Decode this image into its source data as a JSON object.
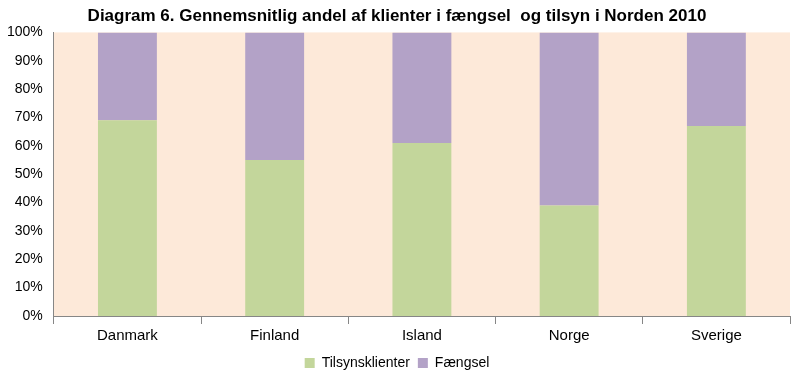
{
  "chart_data": {
    "type": "bar",
    "title": "Diagram 6. Gennemsnitlig andel af klienter i fængsel  og tilsyn i Norden 2010",
    "categories": [
      "Danmark",
      "Finland",
      "Island",
      "Norge",
      "Sverige"
    ],
    "series": [
      {
        "name": "Tilsynsklienter",
        "color": "#c3d69b",
        "values": [
          69,
          55,
          61,
          39,
          67
        ]
      },
      {
        "name": "Fængsel",
        "color": "#b3a2c7",
        "values": [
          31,
          45,
          39,
          61,
          33
        ]
      }
    ],
    "stacked": true,
    "ylim": [
      0,
      100
    ],
    "yticks": [
      {
        "value": 0,
        "label": "0%"
      },
      {
        "value": 10,
        "label": "10%"
      },
      {
        "value": 20,
        "label": "20%"
      },
      {
        "value": 30,
        "label": "30%"
      },
      {
        "value": 40,
        "label": "40%"
      },
      {
        "value": 50,
        "label": "50%"
      },
      {
        "value": 60,
        "label": "60%"
      },
      {
        "value": 70,
        "label": "70%"
      },
      {
        "value": 80,
        "label": "80%"
      },
      {
        "value": 90,
        "label": "90%"
      },
      {
        "value": 100,
        "label": "100%"
      }
    ],
    "grid": false,
    "legend": "bottom"
  }
}
